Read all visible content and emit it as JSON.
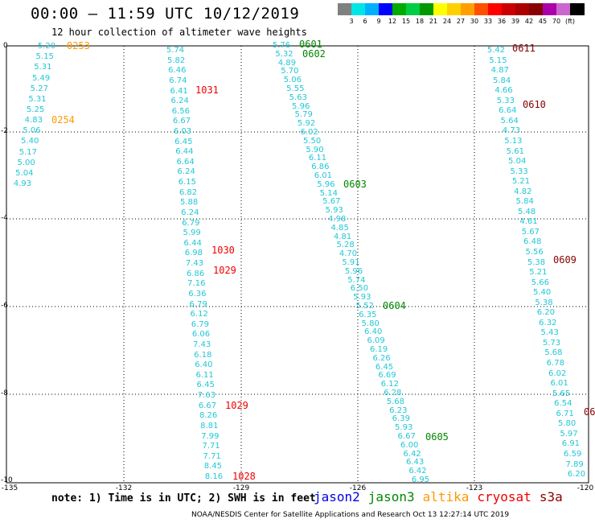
{
  "header": {
    "title": "00:00 – 11:59 UTC 10/12/2019",
    "subtitle": "12 hour collection of altimeter wave heights"
  },
  "colorbar": {
    "colors": [
      "#808080",
      "#00e5e5",
      "#00b0ff",
      "#0000ff",
      "#00aa00",
      "#00cc44",
      "#009900",
      "#ffff00",
      "#ffd000",
      "#ffa000",
      "#ff5000",
      "#ff0000",
      "#cc0000",
      "#aa0000",
      "#880000",
      "#aa00aa",
      "#cc66cc",
      "#000000"
    ],
    "labels": [
      "3",
      "6",
      "9",
      "12",
      "15",
      "18",
      "21",
      "24",
      "27",
      "30",
      "33",
      "36",
      "39",
      "42",
      "45",
      "70",
      "(ft)"
    ]
  },
  "axes": {
    "y_labels": [
      "0",
      "-2",
      "-4",
      "-6",
      "-8",
      "-10"
    ],
    "x_labels": [
      "-135",
      "-132",
      "-129",
      "-126",
      "-123",
      "-120"
    ]
  },
  "tracks": [
    {
      "values": [
        "5.20",
        "5.15",
        "5.31",
        "5.49",
        "5.27",
        "5.31",
        "5.25",
        "4.83",
        "5.06",
        "5.40",
        "5.17",
        "5.00",
        "5.04",
        "4.93"
      ]
    },
    {
      "values": [
        "5.74",
        "5.82",
        "6.46",
        "6.74",
        "6.41",
        "6.24",
        "6.56",
        "6.67",
        "6.03",
        "6.45",
        "6.44",
        "6.64",
        "6.24",
        "6.15",
        "6.82",
        "5.88",
        "6.24",
        "6.79",
        "5.99",
        "6.44",
        "6.98",
        "7.43",
        "6.86",
        "7.16",
        "6.36",
        "6.79",
        "6.12",
        "6.79",
        "6.06",
        "7.43",
        "6.18",
        "6.40",
        "6.11",
        "6.45",
        "7.63",
        "6.67",
        "8.26",
        "8.81",
        "7.99",
        "7.71",
        "7.71",
        "8.45",
        "8.16"
      ]
    },
    {
      "values": [
        "5.76",
        "5.32",
        "4.89",
        "5.70",
        "5.06",
        "5.55",
        "5.63",
        "5.96",
        "5.79",
        "5.92",
        "6.02",
        "5.50",
        "5.90",
        "6.11",
        "6.86",
        "6.01",
        "5.96",
        "5.14",
        "5.67",
        "5.93",
        "4.98",
        "4.85",
        "4.81",
        "5.28",
        "4.70",
        "5.91",
        "5.96",
        "5.74",
        "6.50",
        "5.93",
        "5.52",
        "6.35",
        "5.80",
        "6.40",
        "6.09",
        "6.19",
        "6.26",
        "6.45",
        "6.69",
        "6.12",
        "6.28",
        "5.68",
        "6.23",
        "6.39",
        "5.93",
        "6.67",
        "6.00",
        "6.42",
        "6.43",
        "6.42",
        "6.95"
      ]
    },
    {
      "values": [
        "5.42",
        "5.15",
        "4.87",
        "5.84",
        "4.66",
        "5.33",
        "6.64",
        "5.64",
        "4.73",
        "5.13",
        "5.61",
        "5.04",
        "5.33",
        "5.21",
        "4.82",
        "5.84",
        "5.48",
        "4.61",
        "5.67",
        "6.48",
        "5.56",
        "5.38",
        "5.21",
        "5.66",
        "5.40",
        "5.38",
        "6.20",
        "6.32",
        "5.43",
        "5.73",
        "5.68",
        "6.78",
        "6.02",
        "6.01",
        "5.65",
        "6.54",
        "6.71",
        "5.80",
        "5.97",
        "6.91",
        "6.59",
        "7.89",
        "6.20"
      ]
    }
  ],
  "time_labels": [
    {
      "text": "0253",
      "color": "#ff9900"
    },
    {
      "text": "0254",
      "color": "#ff9900"
    },
    {
      "text": "1031",
      "color": "#ee0000"
    },
    {
      "text": "1030",
      "color": "#ee0000"
    },
    {
      "text": "1029",
      "color": "#ee0000"
    },
    {
      "text": "1029",
      "color": "#ee0000"
    },
    {
      "text": "1028",
      "color": "#ee0000"
    },
    {
      "text": "0601",
      "color": "#008800"
    },
    {
      "text": "0602",
      "color": "#008800"
    },
    {
      "text": "0603",
      "color": "#008800"
    },
    {
      "text": "0604",
      "color": "#008800"
    },
    {
      "text": "0605",
      "color": "#008800"
    },
    {
      "text": "0611",
      "color": "#880000"
    },
    {
      "text": "0610",
      "color": "#880000"
    },
    {
      "text": "0609",
      "color": "#880000"
    },
    {
      "text": "06",
      "color": "#880000"
    }
  ],
  "note": "note: 1) Time is in UTC; 2) SWH is in feet",
  "legend": [
    {
      "text": "jason2",
      "color": "#0000ee"
    },
    {
      "text": "jason3",
      "color": "#008800"
    },
    {
      "text": "altika",
      "color": "#ff9900"
    },
    {
      "text": "cryosat",
      "color": "#ee0000"
    },
    {
      "text": "s3a",
      "color": "#880000"
    }
  ],
  "footer": "NOAA/NESDIS Center for Satellite Applications and Research   Oct 13 12:27:14 UTC 2019"
}
